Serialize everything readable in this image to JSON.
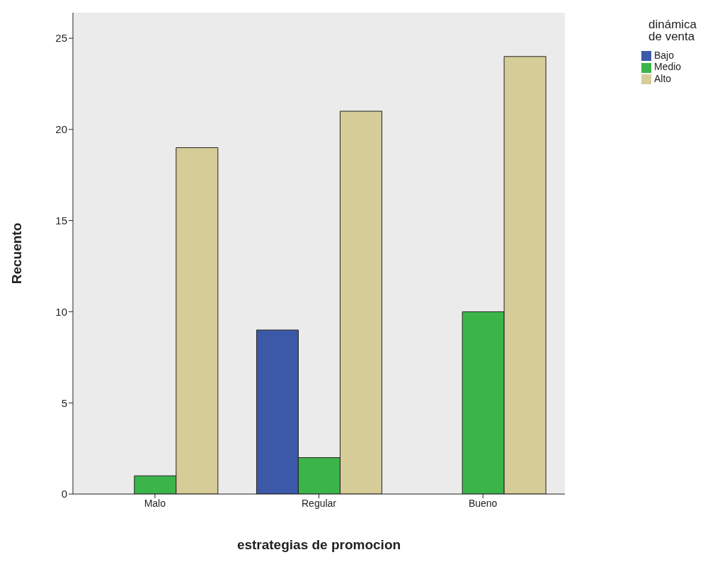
{
  "chart_data": {
    "type": "bar",
    "xlabel": "estrategias de promocion",
    "ylabel": "Recuento",
    "legend_title": "dinámica de venta",
    "categories": [
      "Malo",
      "Regular",
      "Bueno"
    ],
    "series": [
      {
        "name": "Bajo",
        "color": "#3c58a8",
        "values": [
          0,
          9,
          0
        ]
      },
      {
        "name": "Medio",
        "color": "#3bb54a",
        "values": [
          1,
          2,
          10
        ]
      },
      {
        "name": "Alto",
        "color": "#d5cc98",
        "values": [
          19,
          21,
          24
        ]
      }
    ],
    "ylim": [
      0,
      26.4
    ],
    "yticks": [
      0,
      5,
      10,
      15,
      20,
      25
    ],
    "grid": false,
    "legend": "top right"
  }
}
